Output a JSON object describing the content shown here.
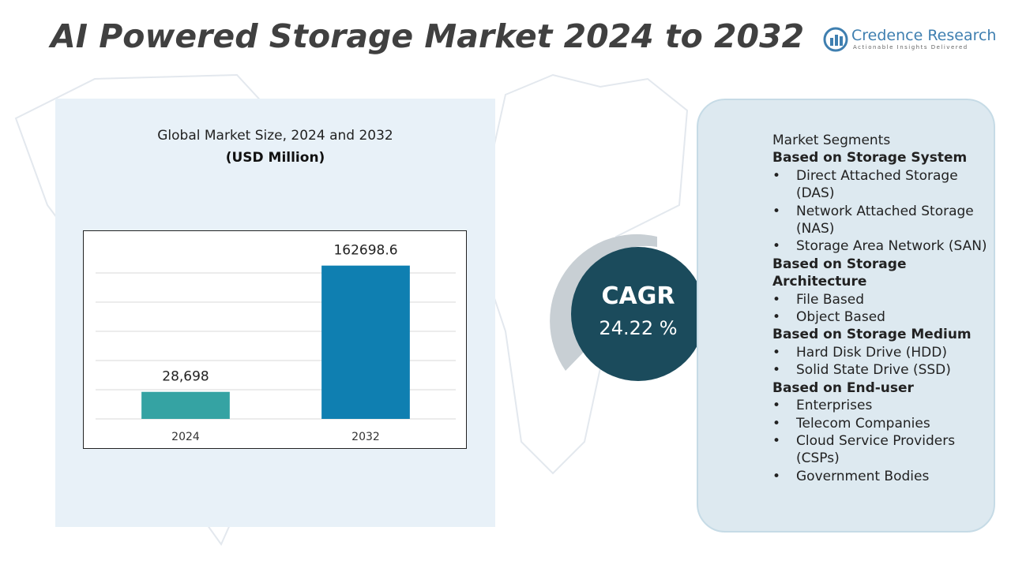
{
  "header": {
    "title": "AI Powered Storage Market 2024 to 2032"
  },
  "logo": {
    "name": "Credence Research",
    "tagline": "Actionable Insights Delivered"
  },
  "chart_data": {
    "type": "bar",
    "title": "Global Market Size, 2024 and 2032",
    "subtitle": "(USD Million)",
    "categories": [
      "2024",
      "2032"
    ],
    "values": [
      28698,
      162698.6
    ],
    "value_labels": [
      "28,698",
      "162698.6"
    ],
    "colors": [
      "#35a3a3",
      "#0f7fb1"
    ],
    "ylim": [
      0,
      180000
    ],
    "grid": true
  },
  "cagr": {
    "label": "CAGR",
    "value": "24.22 %"
  },
  "segments": {
    "title": "Market Segments",
    "groups": [
      {
        "heading": "Based on Storage System",
        "items": [
          "Direct Attached Storage (DAS)",
          "Network Attached Storage (NAS)",
          "Storage Area Network (SAN)"
        ]
      },
      {
        "heading": "Based on Storage Architecture",
        "items": [
          "File Based",
          "Object Based"
        ]
      },
      {
        "heading": "Based on Storage Medium",
        "items": [
          "Hard Disk Drive (HDD)",
          "Solid State Drive (SSD)"
        ]
      },
      {
        "heading": "Based on End-user",
        "items": [
          "Enterprises",
          "Telecom Companies",
          "Cloud Service Providers (CSPs)",
          "Government Bodies"
        ]
      }
    ]
  }
}
